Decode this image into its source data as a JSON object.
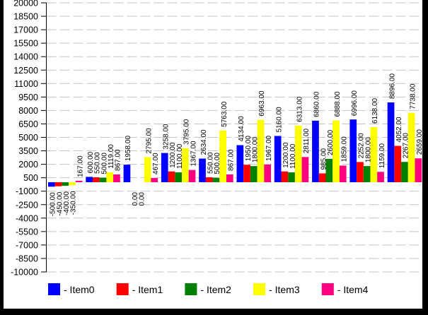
{
  "window": {
    "background_color": "#ffffff",
    "border_color": "#000000"
  },
  "chart_data": {
    "type": "bar",
    "title": "",
    "xlabel": "",
    "ylabel": "",
    "groups": 10,
    "series": [
      {
        "name": "Item0",
        "color": "#0000ff",
        "values": [
          -500,
          600,
          1958,
          3258,
          2634,
          4134,
          5160,
          6860,
          6996,
          8896
        ]
      },
      {
        "name": "Item1",
        "color": "#ff0000",
        "values": [
          -450,
          550,
          0,
          1200,
          550,
          1950,
          1200,
          985,
          2252,
          4052
        ]
      },
      {
        "name": "Item2",
        "color": "#008000",
        "values": [
          -400,
          500,
          0,
          1100,
          500,
          1800,
          1100,
          2600,
          1800,
          2267
        ]
      },
      {
        "name": "Item3",
        "color": "#ffff00",
        "values": [
          -350,
          1119,
          2795,
          3795,
          5763,
          6963,
          6313,
          6888,
          6138,
          7738
        ]
      },
      {
        "name": "Item4",
        "color": "#ff0080",
        "values": [
          167,
          867,
          467,
          1367,
          867,
          1967,
          2811,
          1859,
          1159,
          2659
        ]
      }
    ],
    "y_axis": {
      "min": -10000,
      "max": 20000,
      "tick_step": 1500,
      "tick_labels": [
        "20000",
        "18500",
        "17000",
        "15500",
        "14000",
        "12500",
        "11000",
        "9500",
        "8000",
        "6500",
        "5000",
        "3500",
        "2000",
        "500",
        "-1000",
        "-2500",
        "-4000",
        "-5500",
        "-7000",
        "-8500",
        "-10000"
      ]
    },
    "x_axis": {
      "tick_labels": []
    },
    "value_labels": {
      "visible": true,
      "decimals": 2,
      "rotation_degrees": -90,
      "examples": [
        "-500.00",
        "0.00",
        "1119.00",
        "8896.00"
      ]
    },
    "grid": {
      "horizontal": true,
      "vertical": false,
      "style": "dashed",
      "color": "#c3c3c3"
    },
    "axis_color": "#000000",
    "legend": {
      "position": "bottom",
      "entries": [
        {
          "label": "- Item0",
          "color": "#0000ff"
        },
        {
          "label": "- Item1",
          "color": "#ff0000"
        },
        {
          "label": "- Item2",
          "color": "#008000"
        },
        {
          "label": "- Item3",
          "color": "#ffff00"
        },
        {
          "label": "- Item4",
          "color": "#ff0080"
        }
      ]
    }
  }
}
